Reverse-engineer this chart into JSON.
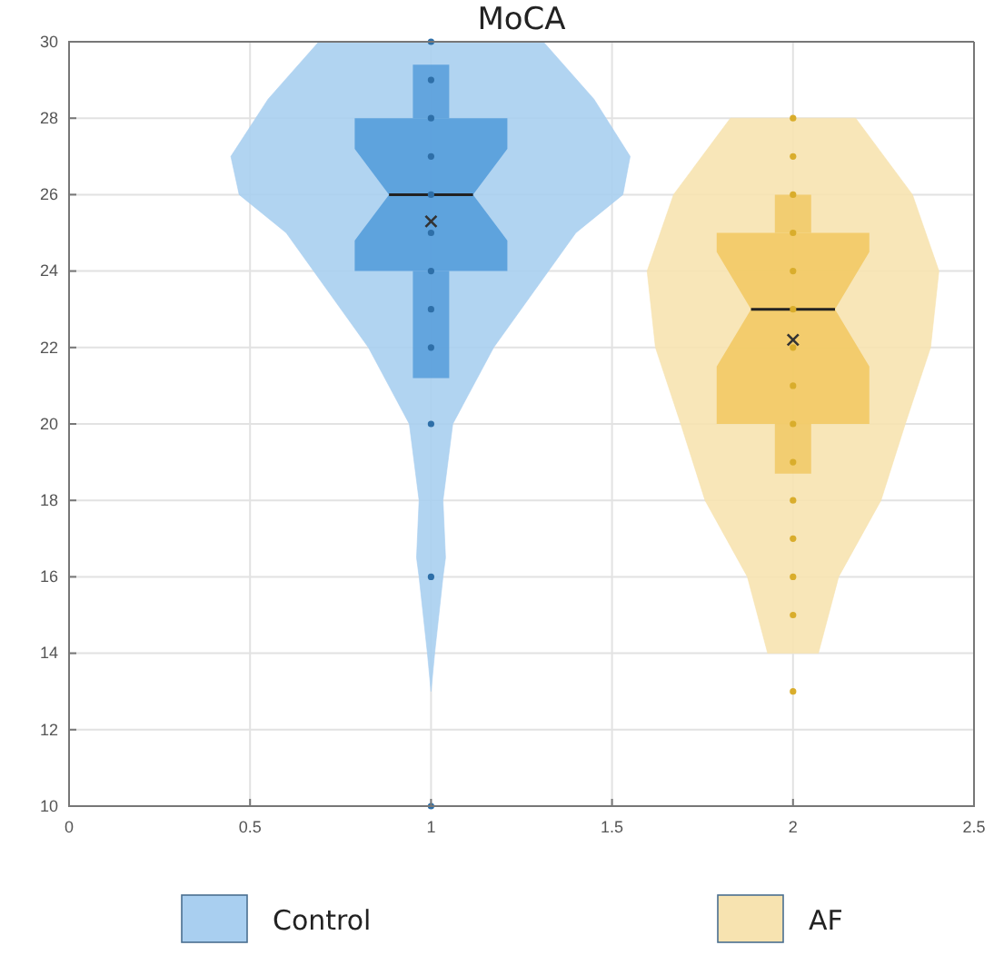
{
  "chart_data": {
    "type": "box",
    "title": "MoCA",
    "xlim": [
      0,
      2.5
    ],
    "xticks": [
      0,
      0.5,
      1,
      1.5,
      2,
      2.5
    ],
    "ylim": [
      10,
      30
    ],
    "yticks": [
      10,
      12,
      14,
      16,
      18,
      20,
      22,
      24,
      26,
      28,
      30
    ],
    "grid": true,
    "legend": "bottom",
    "series": [
      {
        "name": "Control",
        "type": "area",
        "color": "#a9cff0",
        "x": [
          1,
          1.31,
          1.45,
          1.55,
          1.53,
          1.4,
          1.173,
          1.06,
          1.033,
          1.04,
          1.033,
          1.01,
          1,
          0.99,
          0.967,
          0.96,
          0.967,
          0.94,
          0.827,
          0.6,
          0.47,
          0.447,
          0.55,
          0.69,
          1
        ],
        "values": [
          30,
          30,
          28.5,
          27,
          26,
          25,
          22,
          20,
          18,
          16.5,
          16,
          14,
          13,
          14,
          16,
          16.5,
          18,
          20,
          22,
          25,
          26,
          27,
          28.5,
          30,
          30
        ]
      },
      {
        "name": "AF",
        "type": "area",
        "color": "#f7e3b0",
        "x": [
          2,
          2.173,
          2.33,
          2.403,
          2.38,
          2.31,
          2.243,
          2.126,
          2.07,
          2,
          1.93,
          1.874,
          1.757,
          1.69,
          1.62,
          1.597,
          1.67,
          1.827,
          2
        ],
        "values": [
          28,
          28,
          26,
          24,
          22,
          20,
          18,
          16,
          14,
          14,
          14,
          16,
          18,
          20,
          22,
          24,
          26,
          28,
          28
        ]
      },
      {
        "color": "#4a96d8",
        "x": [
          1
        ],
        "boxes": [
          {
            "low": 21.2,
            "q1": 24,
            "median": 26,
            "q3": 28,
            "high": 29.4,
            "mean": 25.3
          }
        ]
      },
      {
        "color": "#f1c55a",
        "x": [
          2
        ],
        "boxes": [
          {
            "low": 18.7,
            "q1": 20,
            "median": 23,
            "q3": 25,
            "high": 26,
            "mean": 22.2
          }
        ]
      },
      {
        "type": "scatter",
        "color": "#2e6fa8",
        "x": [
          1,
          1,
          1,
          1,
          1,
          1,
          1,
          1,
          1,
          1,
          1,
          1
        ],
        "values": [
          30,
          29,
          28,
          27,
          26,
          25,
          24,
          23,
          22,
          20,
          16,
          10
        ]
      },
      {
        "type": "scatter",
        "color": "#d9ad2c",
        "x": [
          2,
          2,
          2,
          2,
          2,
          2,
          2,
          2,
          2,
          2,
          2,
          2,
          2,
          2,
          2
        ],
        "values": [
          28,
          27,
          26,
          25,
          24,
          23,
          22,
          21,
          20,
          19,
          18,
          17,
          16,
          15,
          13
        ]
      }
    ]
  }
}
